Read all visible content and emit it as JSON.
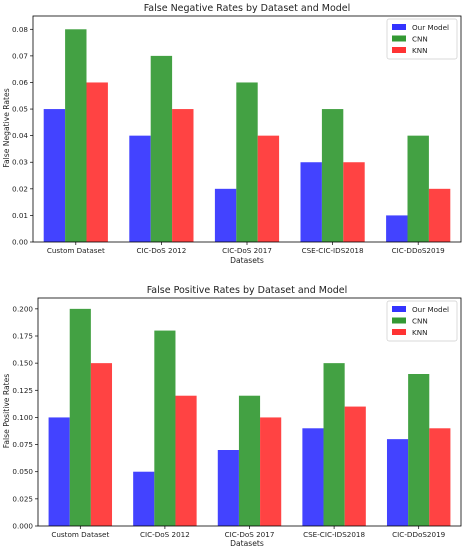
{
  "chart_data": [
    {
      "type": "bar",
      "title": "False Negative Rates by Dataset and Model",
      "xlabel": "Datasets",
      "ylabel": "False Negative Rates",
      "categories": [
        "Custom Dataset",
        "CIC-DoS 2012",
        "CIC-DoS 2017",
        "CSE-CIC-IDS2018",
        "CIC-DDoS2019"
      ],
      "series": [
        {
          "name": "Our Model",
          "values": [
            0.05,
            0.04,
            0.02,
            0.03,
            0.01
          ]
        },
        {
          "name": "CNN",
          "values": [
            0.08,
            0.07,
            0.06,
            0.05,
            0.04
          ]
        },
        {
          "name": "KNN",
          "values": [
            0.06,
            0.05,
            0.04,
            0.03,
            0.02
          ]
        }
      ],
      "ylim": [
        0,
        0.085
      ],
      "yticks": [
        "0.00",
        "0.01",
        "0.02",
        "0.03",
        "0.04",
        "0.05",
        "0.06",
        "0.07",
        "0.08"
      ],
      "grid": false,
      "legend": "top-right"
    },
    {
      "type": "bar",
      "title": "False Positive Rates by Dataset and Model",
      "xlabel": "Datasets",
      "ylabel": "False Positive Rates",
      "categories": [
        "Custom Dataset",
        "CIC-DoS 2012",
        "CIC-DoS 2017",
        "CSE-CIC-IDS2018",
        "CIC-DDoS2019"
      ],
      "series": [
        {
          "name": "Our Model",
          "values": [
            0.1,
            0.05,
            0.07,
            0.09,
            0.08
          ]
        },
        {
          "name": "CNN",
          "values": [
            0.2,
            0.18,
            0.12,
            0.15,
            0.14
          ]
        },
        {
          "name": "KNN",
          "values": [
            0.15,
            0.12,
            0.1,
            0.11,
            0.09
          ]
        }
      ],
      "ylim": [
        0,
        0.21
      ],
      "yticks": [
        "0.000",
        "0.025",
        "0.050",
        "0.075",
        "0.100",
        "0.125",
        "0.150",
        "0.175",
        "0.200"
      ],
      "grid": false,
      "legend": "top-right"
    }
  ],
  "colors": {
    "our_model": "#3333ff",
    "cnn": "#339933",
    "knn": "#ff3333"
  }
}
